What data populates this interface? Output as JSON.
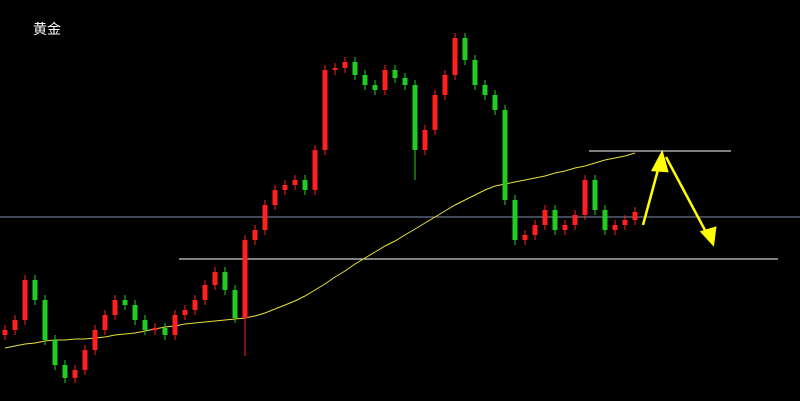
{
  "chart_data": {
    "type": "candlestick",
    "title": "黄金",
    "up_color": "#ff2020",
    "down_color": "#22cc22",
    "ylim": [
      0,
      401
    ],
    "open": [
      66,
      71,
      81,
      121,
      101,
      61,
      36,
      23,
      31,
      51,
      71,
      86,
      101,
      96,
      81,
      71,
      73,
      66,
      86,
      91,
      101,
      116,
      129,
      111,
      83,
      161,
      171,
      196,
      211,
      216,
      221,
      211,
      251,
      331,
      333,
      339,
      326,
      316,
      311,
      331,
      323,
      316,
      251,
      271,
      306,
      326,
      363,
      341,
      316,
      306,
      291,
      201,
      161,
      166,
      176,
      191,
      171,
      176,
      186,
      221,
      191,
      171,
      176,
      181
    ],
    "high": [
      76,
      86,
      126,
      126,
      106,
      66,
      41,
      36,
      56,
      76,
      91,
      106,
      106,
      101,
      86,
      78,
      78,
      91,
      96,
      106,
      121,
      134,
      134,
      116,
      166,
      176,
      201,
      216,
      221,
      226,
      226,
      256,
      336,
      338,
      344,
      344,
      331,
      321,
      336,
      336,
      328,
      321,
      276,
      311,
      331,
      368,
      368,
      346,
      321,
      311,
      296,
      206,
      171,
      181,
      196,
      196,
      181,
      191,
      226,
      226,
      196,
      181,
      186,
      194
    ],
    "low": [
      61,
      66,
      76,
      96,
      56,
      31,
      18,
      18,
      26,
      46,
      66,
      81,
      91,
      76,
      66,
      66,
      61,
      61,
      81,
      86,
      96,
      111,
      106,
      78,
      45,
      156,
      166,
      191,
      206,
      211,
      206,
      206,
      246,
      326,
      328,
      321,
      311,
      306,
      306,
      318,
      311,
      221,
      246,
      266,
      301,
      321,
      336,
      311,
      301,
      286,
      196,
      156,
      156,
      161,
      171,
      166,
      166,
      171,
      181,
      186,
      166,
      166,
      171,
      176
    ],
    "close": [
      71,
      81,
      121,
      101,
      61,
      36,
      23,
      31,
      51,
      71,
      86,
      101,
      96,
      81,
      71,
      73,
      66,
      86,
      91,
      101,
      116,
      129,
      111,
      83,
      161,
      171,
      196,
      211,
      216,
      221,
      211,
      251,
      331,
      333,
      339,
      326,
      316,
      311,
      331,
      323,
      316,
      251,
      271,
      306,
      326,
      363,
      341,
      316,
      306,
      291,
      201,
      161,
      166,
      176,
      191,
      171,
      176,
      186,
      221,
      191,
      171,
      176,
      181,
      189
    ],
    "ma": {
      "color": "#e8e040",
      "values": [
        53,
        55,
        57,
        58,
        60,
        61,
        61,
        62,
        62,
        63,
        64,
        66,
        67,
        68,
        70,
        72,
        74,
        75,
        77,
        78,
        79,
        80,
        81,
        82,
        83,
        85,
        88,
        92,
        96,
        100,
        105,
        111,
        117,
        124,
        130,
        137,
        143,
        149,
        155,
        160,
        166,
        172,
        178,
        184,
        190,
        196,
        201,
        206,
        211,
        215,
        217,
        219,
        221,
        223,
        225,
        228,
        230,
        233,
        235,
        238,
        241,
        243,
        245,
        248
      ]
    },
    "levels": [
      {
        "value": 184,
        "color": "#8090b0"
      },
      {
        "value": 142,
        "color": "#ffffff"
      },
      {
        "value": 250,
        "color": "#ffffff"
      }
    ]
  }
}
